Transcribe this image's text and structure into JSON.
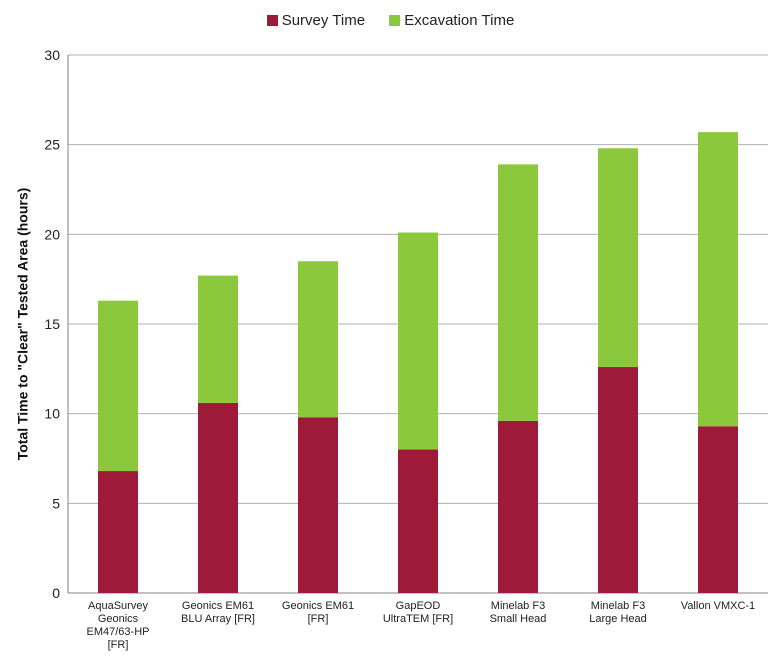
{
  "chart_data": {
    "type": "bar",
    "stacked": true,
    "title": "",
    "xlabel": "",
    "ylabel": "Total Time to \"Clear\" Tested Area (hours)",
    "ylim": [
      0,
      30
    ],
    "yticks": [
      0,
      5,
      10,
      15,
      20,
      25,
      30
    ],
    "grid": true,
    "legend_position": "top-center",
    "categories": [
      [
        "AquaSurvey",
        "Geonics",
        "EM47/63-HP",
        "[FR]"
      ],
      [
        "Geonics EM61",
        "BLU Array [FR]"
      ],
      [
        "Geonics EM61",
        "[FR]"
      ],
      [
        "GapEOD",
        "UltraTEM [FR]"
      ],
      [
        "Minelab F3",
        "Small Head"
      ],
      [
        "Minelab F3",
        "Large Head"
      ],
      [
        "Vallon VMXC-1"
      ]
    ],
    "series": [
      {
        "name": "Survey Time",
        "color": "#9e1a38",
        "values": [
          6.8,
          10.6,
          9.8,
          8.0,
          9.6,
          12.6,
          9.3
        ]
      },
      {
        "name": "Excavation Time",
        "color": "#8cc83c",
        "values": [
          9.5,
          7.1,
          8.7,
          12.1,
          14.3,
          12.2,
          16.4
        ]
      }
    ]
  }
}
